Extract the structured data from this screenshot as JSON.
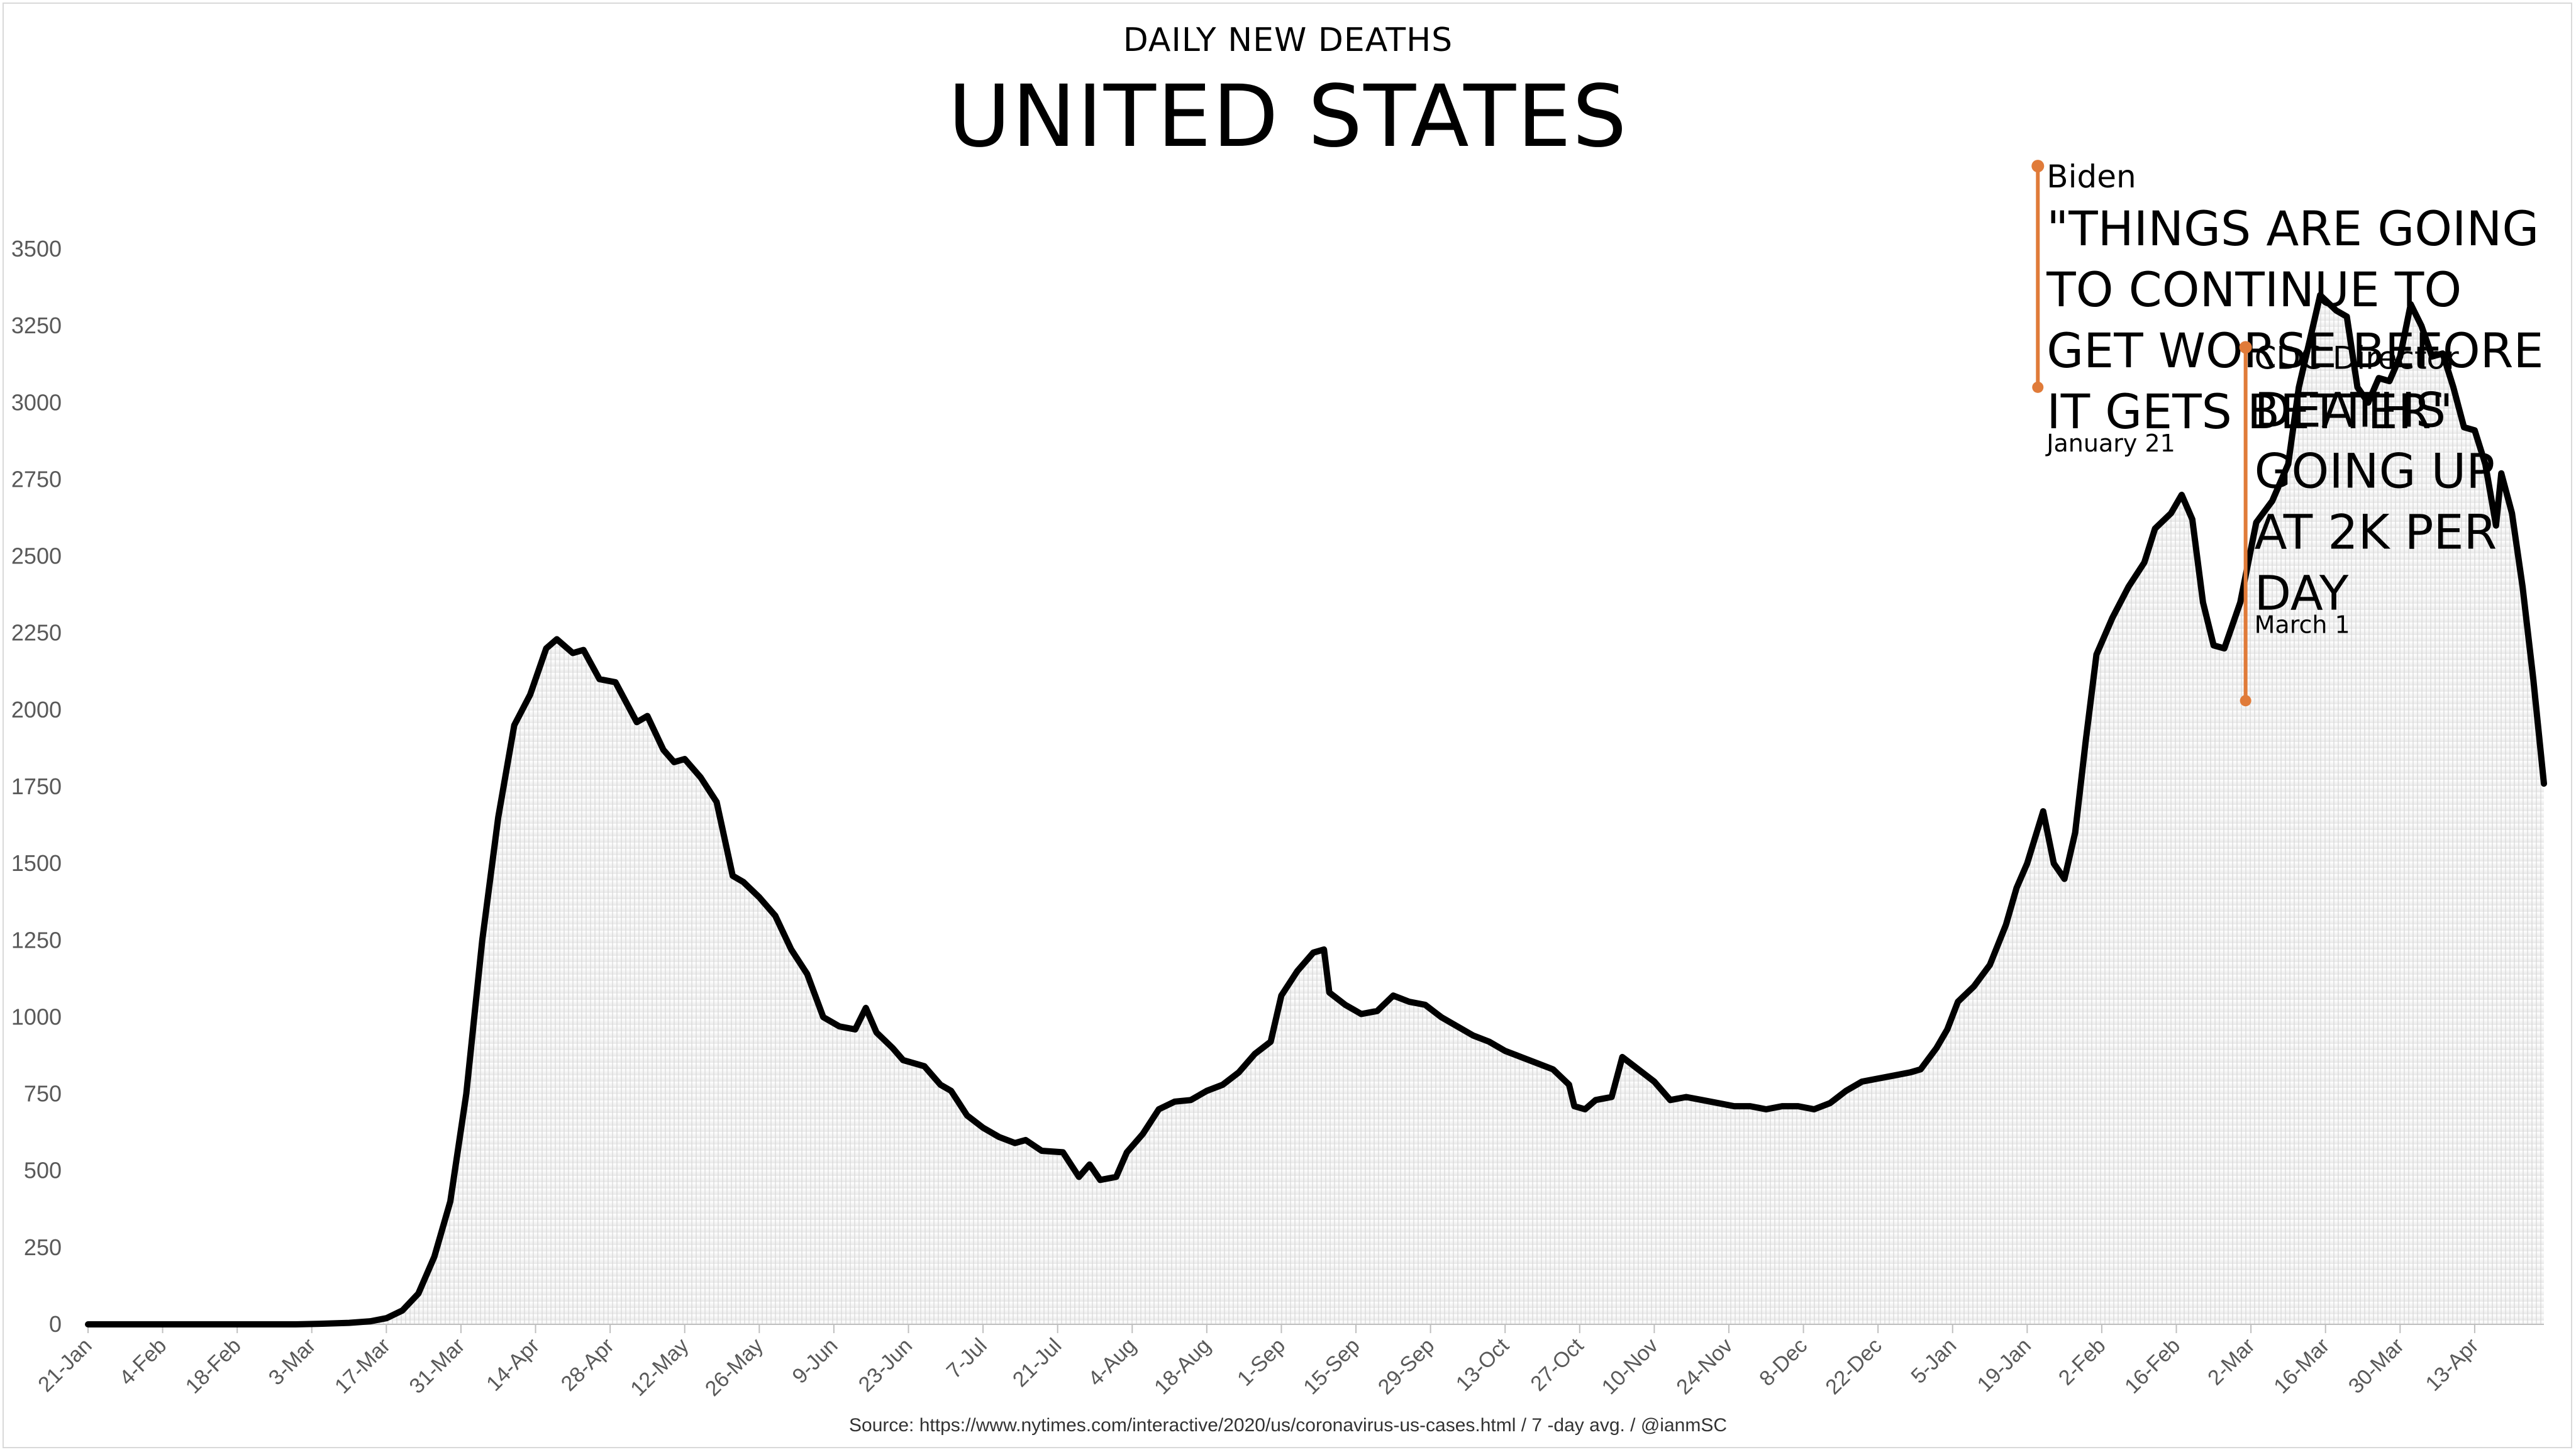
{
  "chart_data": {
    "type": "line",
    "subtitle": "DAILY NEW DEATHS",
    "title": "UNITED STATES",
    "source": "Source: https://www.nytimes.com/interactive/2020/us/coronavirus-us-cases.html / 7 -day avg. / @ianmSC",
    "ylim": [
      0,
      3500
    ],
    "y_ticks": [
      "0",
      "250",
      "500",
      "750",
      "1000",
      "1250",
      "1500",
      "1750",
      "2000",
      "2250",
      "2500",
      "2750",
      "3000",
      "3250",
      "3500"
    ],
    "x_domain": [
      "2020-01-21",
      "2021-04-26"
    ],
    "x_ticks": [
      {
        "date": "2020-01-21",
        "label": "21-Jan"
      },
      {
        "date": "2020-02-04",
        "label": "4-Feb"
      },
      {
        "date": "2020-02-18",
        "label": "18-Feb"
      },
      {
        "date": "2020-03-03",
        "label": "3-Mar"
      },
      {
        "date": "2020-03-17",
        "label": "17-Mar"
      },
      {
        "date": "2020-03-31",
        "label": "31-Mar"
      },
      {
        "date": "2020-04-14",
        "label": "14-Apr"
      },
      {
        "date": "2020-04-28",
        "label": "28-Apr"
      },
      {
        "date": "2020-05-12",
        "label": "12-May"
      },
      {
        "date": "2020-05-26",
        "label": "26-May"
      },
      {
        "date": "2020-06-09",
        "label": "9-Jun"
      },
      {
        "date": "2020-06-23",
        "label": "23-Jun"
      },
      {
        "date": "2020-07-07",
        "label": "7-Jul"
      },
      {
        "date": "2020-07-21",
        "label": "21-Jul"
      },
      {
        "date": "2020-08-04",
        "label": "4-Aug"
      },
      {
        "date": "2020-08-18",
        "label": "18-Aug"
      },
      {
        "date": "2020-09-01",
        "label": "1-Sep"
      },
      {
        "date": "2020-09-15",
        "label": "15-Sep"
      },
      {
        "date": "2020-09-29",
        "label": "29-Sep"
      },
      {
        "date": "2020-10-13",
        "label": "13-Oct"
      },
      {
        "date": "2020-10-27",
        "label": "27-Oct"
      },
      {
        "date": "2020-11-10",
        "label": "10-Nov"
      },
      {
        "date": "2020-11-24",
        "label": "24-Nov"
      },
      {
        "date": "2020-12-08",
        "label": "8-Dec"
      },
      {
        "date": "2020-12-22",
        "label": "22-Dec"
      },
      {
        "date": "2021-01-05",
        "label": "5-Jan"
      },
      {
        "date": "2021-01-19",
        "label": "19-Jan"
      },
      {
        "date": "2021-02-02",
        "label": "2-Feb"
      },
      {
        "date": "2021-02-16",
        "label": "16-Feb"
      },
      {
        "date": "2021-03-02",
        "label": "2-Mar"
      },
      {
        "date": "2021-03-16",
        "label": "16-Mar"
      },
      {
        "date": "2021-03-30",
        "label": "30-Mar"
      },
      {
        "date": "2021-04-13",
        "label": "13-Apr"
      }
    ],
    "series": [
      {
        "color": "#000000",
        "points": [
          [
            "2020-01-21",
            0
          ],
          [
            "2020-02-29",
            0
          ],
          [
            "2020-03-05",
            2
          ],
          [
            "2020-03-10",
            5
          ],
          [
            "2020-03-14",
            10
          ],
          [
            "2020-03-17",
            20
          ],
          [
            "2020-03-20",
            45
          ],
          [
            "2020-03-23",
            100
          ],
          [
            "2020-03-26",
            220
          ],
          [
            "2020-03-29",
            400
          ],
          [
            "2020-04-01",
            750
          ],
          [
            "2020-04-04",
            1250
          ],
          [
            "2020-04-07",
            1650
          ],
          [
            "2020-04-10",
            1950
          ],
          [
            "2020-04-13",
            2050
          ],
          [
            "2020-04-16",
            2200
          ],
          [
            "2020-04-18",
            2230
          ],
          [
            "2020-04-21",
            2185
          ],
          [
            "2020-04-23",
            2195
          ],
          [
            "2020-04-26",
            2100
          ],
          [
            "2020-04-29",
            2090
          ],
          [
            "2020-05-03",
            1960
          ],
          [
            "2020-05-05",
            1980
          ],
          [
            "2020-05-08",
            1870
          ],
          [
            "2020-05-10",
            1830
          ],
          [
            "2020-05-12",
            1840
          ],
          [
            "2020-05-15",
            1780
          ],
          [
            "2020-05-18",
            1700
          ],
          [
            "2020-05-21",
            1460
          ],
          [
            "2020-05-23",
            1440
          ],
          [
            "2020-05-26",
            1390
          ],
          [
            "2020-05-29",
            1330
          ],
          [
            "2020-06-01",
            1220
          ],
          [
            "2020-06-04",
            1140
          ],
          [
            "2020-06-07",
            1000
          ],
          [
            "2020-06-10",
            970
          ],
          [
            "2020-06-13",
            960
          ],
          [
            "2020-06-15",
            1030
          ],
          [
            "2020-06-17",
            950
          ],
          [
            "2020-06-20",
            900
          ],
          [
            "2020-06-22",
            860
          ],
          [
            "2020-06-26",
            840
          ],
          [
            "2020-06-29",
            780
          ],
          [
            "2020-07-01",
            760
          ],
          [
            "2020-07-04",
            680
          ],
          [
            "2020-07-07",
            640
          ],
          [
            "2020-07-10",
            610
          ],
          [
            "2020-07-13",
            590
          ],
          [
            "2020-07-15",
            600
          ],
          [
            "2020-07-18",
            565
          ],
          [
            "2020-07-22",
            560
          ],
          [
            "2020-07-25",
            480
          ],
          [
            "2020-07-27",
            520
          ],
          [
            "2020-07-29",
            470
          ],
          [
            "2020-08-01",
            480
          ],
          [
            "2020-08-03",
            560
          ],
          [
            "2020-08-06",
            620
          ],
          [
            "2020-08-09",
            700
          ],
          [
            "2020-08-12",
            725
          ],
          [
            "2020-08-15",
            730
          ],
          [
            "2020-08-18",
            760
          ],
          [
            "2020-08-21",
            780
          ],
          [
            "2020-08-24",
            820
          ],
          [
            "2020-08-27",
            880
          ],
          [
            "2020-08-30",
            920
          ],
          [
            "2020-09-01",
            1070
          ],
          [
            "2020-09-04",
            1150
          ],
          [
            "2020-09-07",
            1210
          ],
          [
            "2020-09-09",
            1220
          ],
          [
            "2020-09-10",
            1080
          ],
          [
            "2020-09-13",
            1040
          ],
          [
            "2020-09-16",
            1010
          ],
          [
            "2020-09-19",
            1020
          ],
          [
            "2020-09-22",
            1070
          ],
          [
            "2020-09-25",
            1050
          ],
          [
            "2020-09-28",
            1040
          ],
          [
            "2020-10-01",
            1000
          ],
          [
            "2020-10-04",
            970
          ],
          [
            "2020-10-07",
            940
          ],
          [
            "2020-10-10",
            920
          ],
          [
            "2020-10-13",
            890
          ],
          [
            "2020-10-16",
            870
          ],
          [
            "2020-10-19",
            850
          ],
          [
            "2020-10-22",
            830
          ],
          [
            "2020-10-25",
            780
          ],
          [
            "2020-10-26",
            710
          ],
          [
            "2020-10-28",
            700
          ],
          [
            "2020-10-30",
            730
          ],
          [
            "2020-11-02",
            740
          ],
          [
            "2020-11-04",
            870
          ],
          [
            "2020-11-07",
            830
          ],
          [
            "2020-11-10",
            790
          ],
          [
            "2020-11-13",
            730
          ],
          [
            "2020-11-16",
            740
          ],
          [
            "2020-11-19",
            730
          ],
          [
            "2020-11-22",
            720
          ],
          [
            "2020-11-25",
            710
          ],
          [
            "2020-11-28",
            710
          ],
          [
            "2020-12-01",
            700
          ],
          [
            "2020-12-04",
            710
          ],
          [
            "2020-12-07",
            710
          ],
          [
            "2020-12-10",
            700
          ],
          [
            "2020-12-13",
            720
          ],
          [
            "2020-12-16",
            760
          ],
          [
            "2020-12-19",
            790
          ],
          [
            "2020-12-22",
            800
          ],
          [
            "2020-12-25",
            810
          ],
          [
            "2020-12-28",
            820
          ],
          [
            "2020-12-30",
            830
          ],
          [
            "2021-01-02",
            900
          ],
          [
            "2021-01-04",
            960
          ],
          [
            "2021-01-06",
            1050
          ],
          [
            "2021-01-09",
            1100
          ],
          [
            "2021-01-12",
            1170
          ],
          [
            "2021-01-15",
            1300
          ],
          [
            "2021-01-17",
            1420
          ],
          [
            "2021-01-19",
            1500
          ],
          [
            "2021-01-22",
            1670
          ],
          [
            "2021-01-24",
            1500
          ],
          [
            "2021-01-26",
            1450
          ],
          [
            "2021-01-28",
            1600
          ],
          [
            "2021-01-30",
            1900
          ],
          [
            "2021-02-01",
            2180
          ],
          [
            "2021-02-04",
            2300
          ],
          [
            "2021-02-07",
            2400
          ],
          [
            "2021-02-10",
            2480
          ],
          [
            "2021-02-12",
            2590
          ],
          [
            "2021-02-15",
            2640
          ],
          [
            "2021-02-17",
            2700
          ],
          [
            "2021-02-19",
            2620
          ],
          [
            "2021-02-21",
            2350
          ],
          [
            "2021-02-23",
            2210
          ],
          [
            "2021-02-25",
            2200
          ],
          [
            "2021-02-28",
            2350
          ],
          [
            "2021-03-03",
            2610
          ],
          [
            "2021-03-06",
            2680
          ],
          [
            "2021-03-09",
            2800
          ],
          [
            "2021-03-11",
            3050
          ],
          [
            "2021-03-13",
            3200
          ],
          [
            "2021-03-15",
            3350
          ],
          [
            "2021-03-18",
            3300
          ],
          [
            "2021-03-20",
            3280
          ],
          [
            "2021-03-22",
            3050
          ],
          [
            "2021-03-24",
            3000
          ],
          [
            "2021-03-26",
            3080
          ],
          [
            "2021-03-28",
            3070
          ],
          [
            "2021-03-30",
            3150
          ],
          [
            "2021-04-01",
            3320
          ],
          [
            "2021-04-03",
            3250
          ],
          [
            "2021-04-05",
            3150
          ],
          [
            "2021-04-07",
            3160
          ],
          [
            "2021-04-09",
            3050
          ],
          [
            "2021-04-11",
            2920
          ],
          [
            "2021-04-13",
            2910
          ],
          [
            "2021-04-15",
            2800
          ],
          [
            "2021-04-17",
            2600
          ],
          [
            "2021-04-18",
            2770
          ],
          [
            "2021-04-20",
            2640
          ],
          [
            "2021-04-22",
            2400
          ],
          [
            "2021-04-24",
            2100
          ],
          [
            "2021-04-26",
            1760
          ]
        ]
      }
    ],
    "annotations": [
      {
        "name": "Biden",
        "quote": [
          "\"THINGS ARE GOING",
          "TO CONTINUE TO",
          "GET WORSE BEFORE",
          "IT GETS BETTER\""
        ],
        "date_label": "January 21",
        "color": "#e07b39",
        "x": "2021-01-21",
        "y_top": 3770,
        "y_bottom": 3050
      },
      {
        "name": "CDC Director",
        "quote": [
          "DEATHS",
          "GOING UP",
          "AT 2K PER",
          "DAY"
        ],
        "date_label": "March 1",
        "color": "#e07b39",
        "x": "2021-03-01",
        "y_top": 3180,
        "y_bottom": 2030
      }
    ]
  }
}
